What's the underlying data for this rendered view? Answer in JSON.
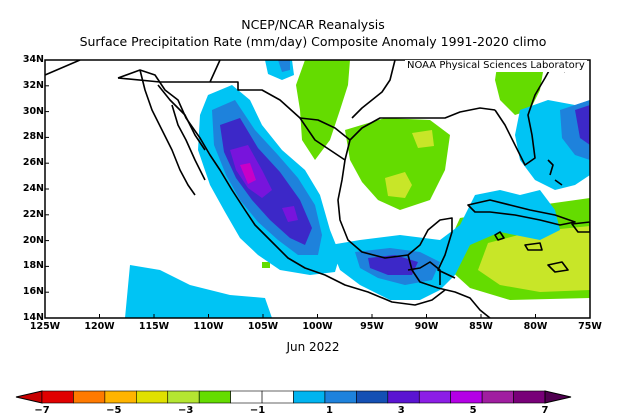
{
  "title": {
    "line1": "NCEP/NCAR Reanalysis",
    "line2": "Surface Precipitation Rate (mm/day) Composite Anomaly 1991-2020 climo"
  },
  "credit": "NOAA Physical Sciences Laboratory",
  "time_label": "Jun 2022",
  "map": {
    "lon_range": [
      -125,
      -75
    ],
    "lat_range": [
      14,
      34
    ],
    "x_ticks": [
      {
        "lon": -125,
        "label": "125W"
      },
      {
        "lon": -120,
        "label": "120W"
      },
      {
        "lon": -115,
        "label": "115W"
      },
      {
        "lon": -110,
        "label": "110W"
      },
      {
        "lon": -105,
        "label": "105W"
      },
      {
        "lon": -100,
        "label": "100W"
      },
      {
        "lon": -95,
        "label": "95W"
      },
      {
        "lon": -90,
        "label": "90W"
      },
      {
        "lon": -85,
        "label": "85W"
      },
      {
        "lon": -80,
        "label": "80W"
      },
      {
        "lon": -75,
        "label": "75W"
      }
    ],
    "y_ticks": [
      {
        "lat": 34,
        "label": "34N"
      },
      {
        "lat": 32,
        "label": "32N"
      },
      {
        "lat": 30,
        "label": "30N"
      },
      {
        "lat": 28,
        "label": "28N"
      },
      {
        "lat": 26,
        "label": "26N"
      },
      {
        "lat": 24,
        "label": "24N"
      },
      {
        "lat": 22,
        "label": "22N"
      },
      {
        "lat": 20,
        "label": "20N"
      },
      {
        "lat": 18,
        "label": "18N"
      },
      {
        "lat": 16,
        "label": "16N"
      },
      {
        "lat": 14,
        "label": "14N"
      }
    ]
  },
  "colorbar": {
    "colors": [
      "#e00000",
      "#ff7a00",
      "#ffb400",
      "#e0e000",
      "#b4e632",
      "#64dc00",
      "#ffffff",
      "#ffffff",
      "#00b4f0",
      "#1e82dc",
      "#1450b4",
      "#5a14d2",
      "#8c1ee6",
      "#b400e6",
      "#a01ea0",
      "#780078"
    ],
    "labels": [
      {
        "value": -7,
        "label": "−7"
      },
      {
        "value": -5,
        "label": "−5"
      },
      {
        "value": -3,
        "label": "−3"
      },
      {
        "value": -1,
        "label": "−1"
      },
      {
        "value": 1,
        "label": "1"
      },
      {
        "value": 3,
        "label": "3"
      },
      {
        "value": 5,
        "label": "5"
      },
      {
        "value": 7,
        "label": "7"
      }
    ]
  },
  "colors": {
    "light_blue": "#00c4f4",
    "blue": "#1e82dc",
    "dark_blue": "#3c28c8",
    "purple": "#7814dc",
    "magenta": "#c800c8",
    "light_green": "#64dc00",
    "yellow_green": "#c8e628",
    "coast": "#000000"
  }
}
